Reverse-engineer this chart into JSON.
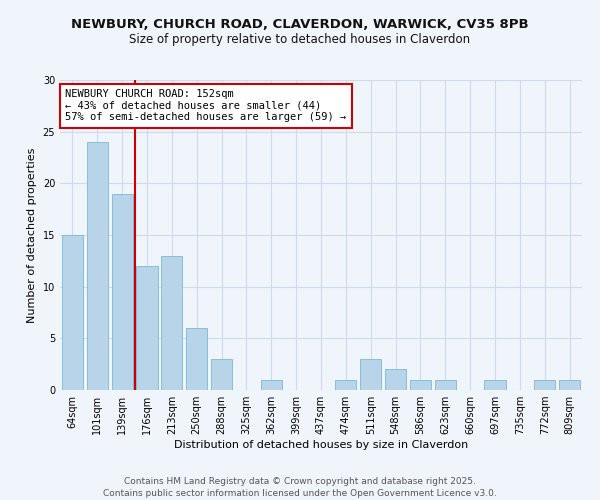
{
  "title": "NEWBURY, CHURCH ROAD, CLAVERDON, WARWICK, CV35 8PB",
  "subtitle": "Size of property relative to detached houses in Claverdon",
  "xlabel": "Distribution of detached houses by size in Claverdon",
  "ylabel": "Number of detached properties",
  "bar_labels": [
    "64sqm",
    "101sqm",
    "139sqm",
    "176sqm",
    "213sqm",
    "250sqm",
    "288sqm",
    "325sqm",
    "362sqm",
    "399sqm",
    "437sqm",
    "474sqm",
    "511sqm",
    "548sqm",
    "586sqm",
    "623sqm",
    "660sqm",
    "697sqm",
    "735sqm",
    "772sqm",
    "809sqm"
  ],
  "bar_values": [
    15,
    24,
    19,
    12,
    13,
    6,
    3,
    0,
    1,
    0,
    0,
    1,
    3,
    2,
    1,
    1,
    0,
    1,
    0,
    1,
    1
  ],
  "bar_color": "#b8d4e8",
  "bar_edge_color": "#7ab8d8",
  "vline_color": "#cc0000",
  "annotation_text": "NEWBURY CHURCH ROAD: 152sqm\n← 43% of detached houses are smaller (44)\n57% of semi-detached houses are larger (59) →",
  "annotation_box_color": "#ffffff",
  "annotation_box_edge": "#cc0000",
  "ylim": [
    0,
    30
  ],
  "yticks": [
    0,
    5,
    10,
    15,
    20,
    25,
    30
  ],
  "footer1": "Contains HM Land Registry data © Crown copyright and database right 2025.",
  "footer2": "Contains public sector information licensed under the Open Government Licence v3.0.",
  "bg_color": "#f0f5fc",
  "grid_color": "#ccdaee",
  "title_fontsize": 9.5,
  "subtitle_fontsize": 8.5,
  "axis_label_fontsize": 8,
  "tick_fontsize": 7,
  "footer_fontsize": 6.5
}
